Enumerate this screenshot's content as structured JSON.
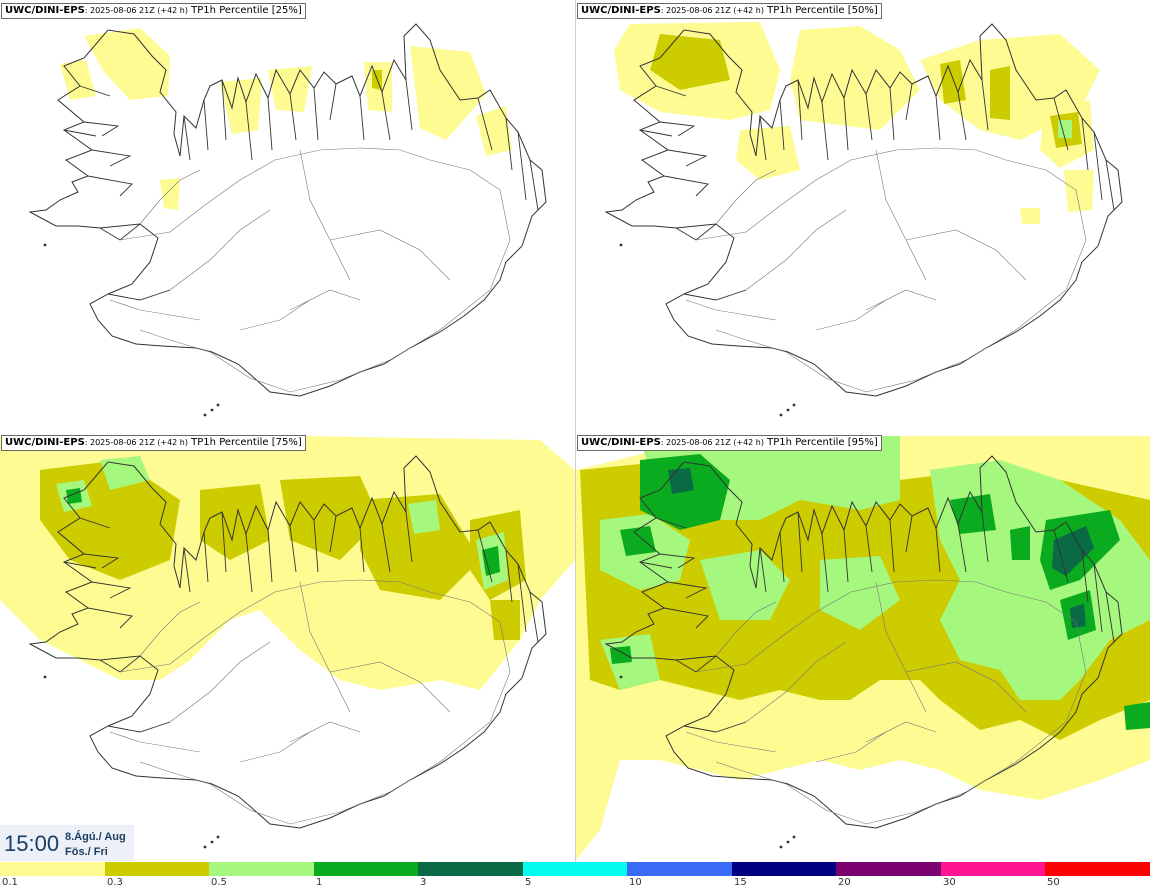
{
  "panels": [
    {
      "model": "UWC/DINI-EPS",
      "run": ": 2025-08-06 21Z (+42 h)",
      "product": "TP1h Percentile [25%]",
      "level": 0
    },
    {
      "model": "UWC/DINI-EPS",
      "run": ": 2025-08-06 21Z (+42 h)",
      "product": "TP1h Percentile [50%]",
      "level": 1
    },
    {
      "model": "UWC/DINI-EPS",
      "run": ": 2025-08-06 21Z (+42 h)",
      "product": "TP1h Percentile [75%]",
      "level": 2
    },
    {
      "model": "UWC/DINI-EPS",
      "run": ": 2025-08-06 21Z (+42 h)",
      "product": "TP1h Percentile [95%]",
      "level": 3
    }
  ],
  "time": {
    "clock": "15:00",
    "date_line1": "8.Ágú./ Aug",
    "date_line2": "Fös./ Fri"
  },
  "legend": {
    "colors": [
      "#fdfb92",
      "#cccc00",
      "#a6f77e",
      "#0aab1e",
      "#0a6a46",
      "#03fbf0",
      "#3b6bf5",
      "#000080",
      "#7a0070",
      "#ff1491",
      "#fa0202"
    ],
    "labels": [
      "0.1",
      "0.3",
      "0.5",
      "1",
      "3",
      "5",
      "10",
      "15",
      "20",
      "30",
      "50"
    ]
  }
}
